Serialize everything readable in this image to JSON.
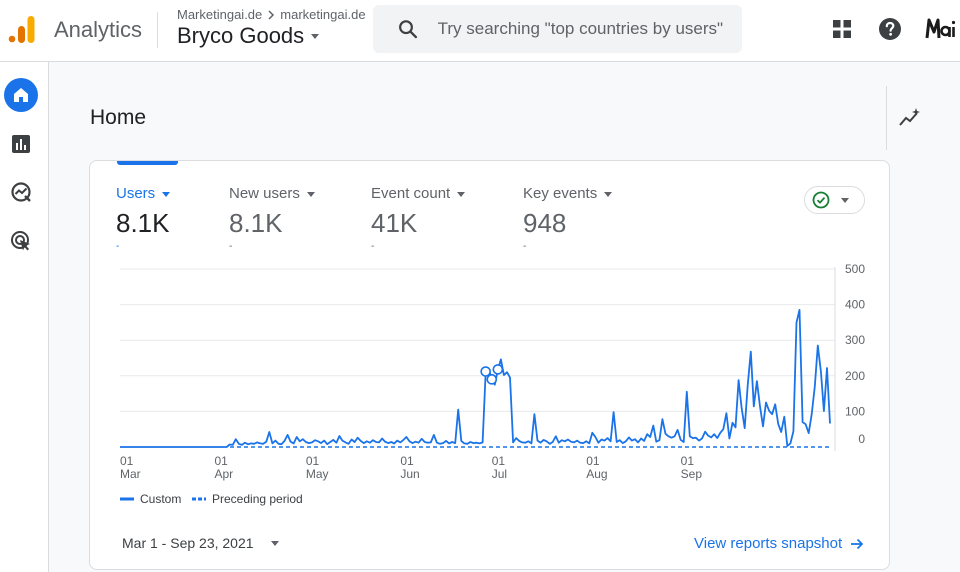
{
  "header": {
    "app_title": "Analytics",
    "breadcrumb": [
      "Marketingai.de",
      "marketingai.de"
    ],
    "property_name": "Bryco Goods",
    "search_placeholder": "Try searching \"top countries by users\""
  },
  "page": {
    "title": "Home"
  },
  "metrics": [
    {
      "label": "Users",
      "value": "8.1K",
      "dash": "-"
    },
    {
      "label": "New users",
      "value": "8.1K",
      "dash": "-"
    },
    {
      "label": "Event count",
      "value": "41K",
      "dash": "-"
    },
    {
      "label": "Key events",
      "value": "948",
      "dash": "-"
    }
  ],
  "legend": {
    "custom": "Custom",
    "preceding": "Preceding period"
  },
  "footer": {
    "date_range": "Mar 1 - Sep 23, 2021",
    "view_link": "View reports snapshot"
  },
  "colors": {
    "accent": "#1a73e8",
    "ok_green": "#188038"
  },
  "chart_data": {
    "type": "line",
    "y_ticks": [
      "0",
      "100",
      "200",
      "300",
      "400",
      "500"
    ],
    "ylim": [
      0,
      500
    ],
    "x_tick_labels": [
      {
        "day": "01",
        "month": "Mar",
        "index": 0
      },
      {
        "day": "01",
        "month": "Apr",
        "index": 31
      },
      {
        "day": "01",
        "month": "May",
        "index": 61
      },
      {
        "day": "01",
        "month": "Jun",
        "index": 92
      },
      {
        "day": "01",
        "month": "Jul",
        "index": 122
      },
      {
        "day": "01",
        "month": "Aug",
        "index": 153
      },
      {
        "day": "01",
        "month": "Sep",
        "index": 184
      }
    ],
    "series": [
      {
        "name": "Custom",
        "values": [
          0,
          0,
          0,
          0,
          0,
          0,
          0,
          0,
          0,
          0,
          0,
          0,
          0,
          0,
          0,
          0,
          0,
          0,
          0,
          0,
          0,
          0,
          0,
          0,
          0,
          0,
          0,
          0,
          0,
          0,
          0,
          0,
          0,
          0,
          0,
          0,
          7,
          6,
          22,
          9,
          6,
          12,
          8,
          10,
          9,
          13,
          10,
          9,
          15,
          42,
          10,
          18,
          9,
          8,
          17,
          34,
          15,
          10,
          28,
          16,
          22,
          14,
          11,
          13,
          19,
          16,
          11,
          18,
          8,
          14,
          20,
          12,
          31,
          18,
          13,
          9,
          21,
          14,
          26,
          17,
          11,
          16,
          12,
          19,
          14,
          13,
          24,
          15,
          11,
          14,
          10,
          18,
          13,
          20,
          28,
          16,
          11,
          15,
          12,
          23,
          14,
          12,
          13,
          34,
          12,
          9,
          11,
          17,
          10,
          14,
          11,
          105,
          17,
          10,
          9,
          14,
          11,
          12,
          10,
          13,
          212,
          220,
          190,
          175,
          218,
          246,
          202,
          210,
          195,
          13,
          25,
          17,
          13,
          12,
          16,
          10,
          92,
          18,
          12,
          20,
          16,
          9,
          14,
          30,
          12,
          19,
          16,
          21,
          15,
          13,
          18,
          12,
          11,
          16,
          10,
          40,
          28,
          12,
          21,
          18,
          25,
          16,
          98,
          14,
          19,
          11,
          16,
          27,
          18,
          22,
          13,
          24,
          17,
          36,
          28,
          60,
          15,
          19,
          78,
          37,
          30,
          26,
          30,
          48,
          20,
          14,
          155,
          30,
          25,
          26,
          18,
          24,
          43,
          32,
          27,
          36,
          25,
          40,
          50,
          95,
          24,
          68,
          55,
          188,
          110,
          53,
          173,
          268,
          114,
          185,
          116,
          58,
          125,
          102,
          92,
          120,
          65,
          42,
          85,
          3,
          10,
          44,
          350,
          385,
          70,
          64,
          39,
          92,
          170,
          285,
          212,
          101,
          222,
          66
        ]
      },
      {
        "name": "Preceding period",
        "values": []
      }
    ],
    "legend_position": "bottom-left",
    "grid": true
  }
}
